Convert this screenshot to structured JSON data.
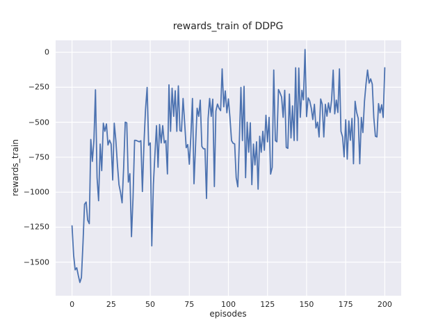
{
  "figure": {
    "title": "rewards_train of DDPG",
    "xlabel": "episodes",
    "ylabel": "rewards_train"
  },
  "colors": {
    "line": "#4c72b0",
    "axes_background": "#eaeaf2",
    "gridline": "#ffffff",
    "figure_background": "#ffffff",
    "text": "#262626"
  },
  "chart_data": {
    "type": "line",
    "title": "rewards_train of DDPG",
    "xlabel": "episodes",
    "ylabel": "rewards_train",
    "xlim": [
      -10.5,
      210.5
    ],
    "ylim": [
      -1740,
      85
    ],
    "grid": true,
    "legend": false,
    "xticks": [
      0,
      25,
      50,
      75,
      100,
      125,
      150,
      175,
      200
    ],
    "xtick_labels": [
      "0",
      "25",
      "50",
      "75",
      "100",
      "125",
      "150",
      "175",
      "200"
    ],
    "yticks": [
      0,
      -250,
      -500,
      -750,
      -1000,
      -1250,
      -1500
    ],
    "ytick_labels": [
      "0",
      "−250",
      "−500",
      "−750",
      "−1000",
      "−1250",
      "−1500"
    ],
    "series": [
      {
        "name": "rewards_train",
        "color": "#4c72b0",
        "x": [
          0,
          1,
          2,
          3,
          4,
          5,
          6,
          7,
          8,
          9,
          10,
          11,
          12,
          13,
          14,
          15,
          16,
          17,
          18,
          19,
          20,
          21,
          22,
          23,
          24,
          25,
          26,
          27,
          28,
          29,
          30,
          31,
          32,
          33,
          34,
          35,
          36,
          37,
          38,
          39,
          40,
          41,
          42,
          43,
          44,
          45,
          46,
          47,
          48,
          49,
          50,
          51,
          52,
          53,
          54,
          55,
          56,
          57,
          58,
          59,
          60,
          61,
          62,
          63,
          64,
          65,
          66,
          67,
          68,
          69,
          70,
          71,
          72,
          73,
          74,
          75,
          76,
          77,
          78,
          79,
          80,
          81,
          82,
          83,
          84,
          85,
          86,
          87,
          88,
          89,
          90,
          91,
          92,
          93,
          94,
          95,
          96,
          97,
          98,
          99,
          100,
          101,
          102,
          103,
          104,
          105,
          106,
          107,
          108,
          109,
          110,
          111,
          112,
          113,
          114,
          115,
          116,
          117,
          118,
          119,
          120,
          121,
          122,
          123,
          124,
          125,
          126,
          127,
          128,
          129,
          130,
          131,
          132,
          133,
          134,
          135,
          136,
          137,
          138,
          139,
          140,
          141,
          142,
          143,
          144,
          145,
          146,
          147,
          148,
          149,
          150,
          151,
          152,
          153,
          154,
          155,
          156,
          157,
          158,
          159,
          160,
          161,
          162,
          163,
          164,
          165,
          166,
          167,
          168,
          169,
          170,
          171,
          172,
          173,
          174,
          175,
          176,
          177,
          178,
          179,
          180,
          181,
          182,
          183,
          184,
          185,
          186,
          187,
          188,
          189,
          190,
          191,
          192,
          193,
          194,
          195,
          196,
          197,
          198,
          199,
          200
        ],
        "y": [
          -1240,
          -1450,
          -1555,
          -1540,
          -1595,
          -1645,
          -1610,
          -1360,
          -1086,
          -1070,
          -1200,
          -1225,
          -623,
          -780,
          -628,
          -268,
          -896,
          -1061,
          -656,
          -846,
          -507,
          -565,
          -512,
          -663,
          -628,
          -656,
          -913,
          -507,
          -628,
          -797,
          -946,
          -1000,
          -1076,
          -830,
          -500,
          -505,
          -928,
          -868,
          -1318,
          -1043,
          -629,
          -630,
          -635,
          -640,
          -632,
          -995,
          -648,
          -408,
          -251,
          -665,
          -648,
          -1384,
          -945,
          -730,
          -524,
          -822,
          -516,
          -648,
          -524,
          -648,
          -631,
          -870,
          -233,
          -565,
          -257,
          -458,
          -275,
          -565,
          -240,
          -560,
          -565,
          -330,
          -500,
          -682,
          -660,
          -800,
          -600,
          -330,
          -940,
          -660,
          -400,
          -458,
          -342,
          -673,
          -690,
          -690,
          -1045,
          -475,
          -330,
          -458,
          -335,
          -960,
          -420,
          -370,
          -400,
          -417,
          -119,
          -390,
          -276,
          -432,
          -333,
          -465,
          -631,
          -650,
          -655,
          -896,
          -962,
          -640,
          -251,
          -631,
          -243,
          -896,
          -500,
          -714,
          -504,
          -946,
          -656,
          -805,
          -640,
          -978,
          -600,
          -714,
          -565,
          -700,
          -450,
          -640,
          -465,
          -871,
          -822,
          -127,
          -631,
          -640,
          -266,
          -290,
          -320,
          -465,
          -272,
          -680,
          -687,
          -299,
          -612,
          -383,
          -631,
          -111,
          -631,
          -113,
          -465,
          -272,
          -340,
          20,
          -460,
          -326,
          -347,
          -400,
          -481,
          -372,
          -541,
          -500,
          -605,
          -334,
          -372,
          -605,
          -372,
          -457,
          -362,
          -430,
          -342,
          -128,
          -440,
          -342,
          -430,
          -119,
          -565,
          -605,
          -747,
          -483,
          -764,
          -491,
          -629,
          -473,
          -797,
          -350,
          -429,
          -473,
          -797,
          -466,
          -574,
          -350,
          -227,
          -127,
          -221,
          -190,
          -228,
          -466,
          -600,
          -605,
          -367,
          -433,
          -375,
          -466,
          -111
        ]
      }
    ]
  }
}
